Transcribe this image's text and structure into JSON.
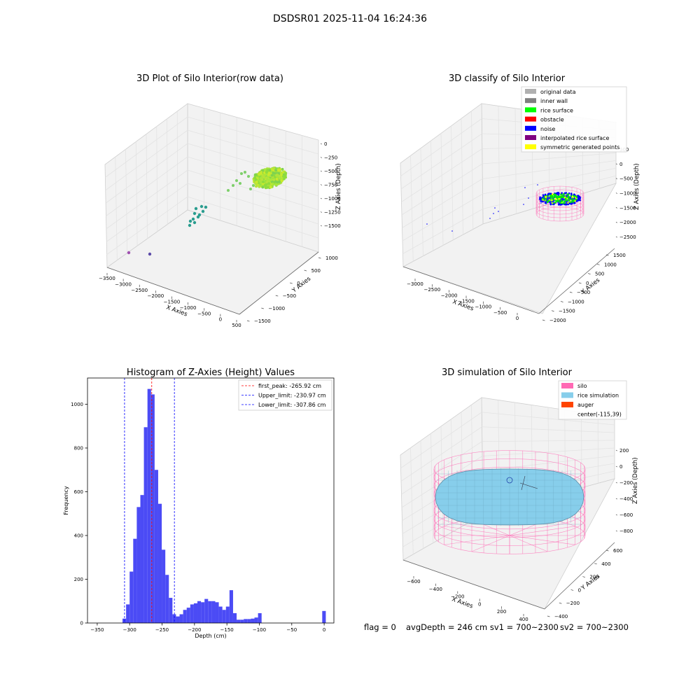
{
  "suptitle": "DSDSR01 2025-11-04 16:24:36",
  "footer": {
    "flag": "flag = 0",
    "avg": "avgDepth = 246 cm  sv1 = 700~2300",
    "sv2": "sv2 = 700~2300"
  },
  "colors": {
    "hist_bar": "#4b4bf5",
    "peak_line": "#ff0000",
    "limit_line": "#0000ff",
    "rice_surface": "#00ff00",
    "noise": "#0000ff",
    "silo": "#ff69b4",
    "rice_sim": "#87ceeb",
    "auger": "#ff4500"
  },
  "chart_data": [
    {
      "type": "scatter",
      "projection": "3d",
      "title": "3D Plot of Silo Interior(row data)",
      "xlabel": "X Axies",
      "ylabel": "Y Axies",
      "zlabel": "Z Axies (Depth)",
      "xticks": [
        "−3500",
        "−3000",
        "−2500",
        "−2000",
        "−1500",
        "−1000",
        "−500",
        "0",
        "500"
      ],
      "yticks": [
        "−1500",
        "−1000",
        "−500",
        "0",
        "500",
        "1000"
      ],
      "zticks": [
        "0",
        "−250",
        "−500",
        "−750",
        "−1000",
        "−1250",
        "−1500"
      ],
      "points_summary": "dense cluster near x≈0, y≈0, z≈-300 to -600; sparse points toward x≈-3000"
    },
    {
      "type": "scatter",
      "projection": "3d",
      "title": "3D classify of Silo Interior",
      "xlabel": "X Axies",
      "ylabel": "Y Axies",
      "zlabel": "Z Axies (Depth)",
      "xticks": [
        "−3000",
        "−2500",
        "−2000",
        "−1500",
        "−1000",
        "−500",
        "0"
      ],
      "yticks": [
        "−2000",
        "−1500",
        "−1000",
        "−500",
        "0",
        "500",
        "1000",
        "1500"
      ],
      "zticks": [
        "500",
        "0",
        "−500",
        "−1000",
        "−1500",
        "−2000",
        "−2500"
      ],
      "legend": [
        {
          "label": "original data",
          "color": "#b0b0b0"
        },
        {
          "label": "inner wall",
          "color": "#808080"
        },
        {
          "label": "rice surface",
          "color": "#00ff00"
        },
        {
          "label": "obstacle",
          "color": "#ff0000"
        },
        {
          "label": "noise",
          "color": "#0000ff"
        },
        {
          "label": "interpolated rice surface",
          "color": "#800080"
        },
        {
          "label": "symmetric generated points",
          "color": "#ffff00"
        }
      ],
      "legend_loc": "top-right"
    },
    {
      "type": "bar",
      "title": "Histogram of Z-Axies (Height) Values",
      "xlabel": "Depth (cm)",
      "ylabel": "Frequency",
      "xlim": [
        -365,
        15
      ],
      "ylim": [
        0,
        1120
      ],
      "xticks": [
        -350,
        -300,
        -250,
        -200,
        -150,
        -100,
        -50,
        0
      ],
      "yticks": [
        0,
        200,
        400,
        600,
        800,
        1000
      ],
      "bin_width": 5.5,
      "bins": [
        [
          -311,
          20
        ],
        [
          -305.5,
          85
        ],
        [
          -300,
          235
        ],
        [
          -294.5,
          385
        ],
        [
          -289,
          530
        ],
        [
          -283.5,
          585
        ],
        [
          -278,
          895
        ],
        [
          -272.5,
          1070
        ],
        [
          -267,
          1045
        ],
        [
          -261.5,
          700
        ],
        [
          -256,
          545
        ],
        [
          -250.5,
          335
        ],
        [
          -245,
          220
        ],
        [
          -239.5,
          115
        ],
        [
          -234,
          40
        ],
        [
          -228.5,
          30
        ],
        [
          -223,
          40
        ],
        [
          -217.5,
          60
        ],
        [
          -212,
          70
        ],
        [
          -206.5,
          85
        ],
        [
          -201,
          90
        ],
        [
          -195.5,
          100
        ],
        [
          -190,
          95
        ],
        [
          -184.5,
          110
        ],
        [
          -179,
          100
        ],
        [
          -173.5,
          100
        ],
        [
          -168,
          95
        ],
        [
          -162.5,
          75
        ],
        [
          -157,
          60
        ],
        [
          -151.5,
          75
        ],
        [
          -146,
          150
        ],
        [
          -140.5,
          45
        ],
        [
          -135,
          15
        ],
        [
          -129.5,
          15
        ],
        [
          -124,
          18
        ],
        [
          -118.5,
          18
        ],
        [
          -113,
          20
        ],
        [
          -107.5,
          25
        ],
        [
          -102,
          45
        ],
        [
          -3,
          55
        ]
      ],
      "vlines": [
        {
          "x": -265.92,
          "label": "first_peak: -265.92 cm",
          "color": "#ff0000"
        },
        {
          "x": -230.97,
          "label": "Upper_limit: -230.97 cm",
          "color": "#0000ff"
        },
        {
          "x": -307.86,
          "label": "Lower_limit: -307.86 cm",
          "color": "#0000ff"
        }
      ],
      "legend_loc": "top-right"
    },
    {
      "type": "surface",
      "projection": "3d",
      "title": "3D simulation of Silo Interior",
      "xlabel": "X Axies",
      "ylabel": "Y Axies",
      "zlabel": "Z Axies (Depth)",
      "xticks": [
        "−600",
        "−400",
        "−200",
        "0",
        "200",
        "400"
      ],
      "yticks": [
        "−400",
        "−200",
        "0",
        "200",
        "400",
        "600"
      ],
      "zticks": [
        "200",
        "0",
        "−200",
        "−400",
        "−600",
        "−800"
      ],
      "legend": [
        {
          "label": "silo",
          "color": "#ff69b4"
        },
        {
          "label": "rice simulation",
          "color": "#87ceeb"
        },
        {
          "label": "auger",
          "color": "#ff4500"
        },
        {
          "label": "center(-115,39)",
          "color": "none"
        }
      ],
      "legend_loc": "top-right"
    }
  ]
}
